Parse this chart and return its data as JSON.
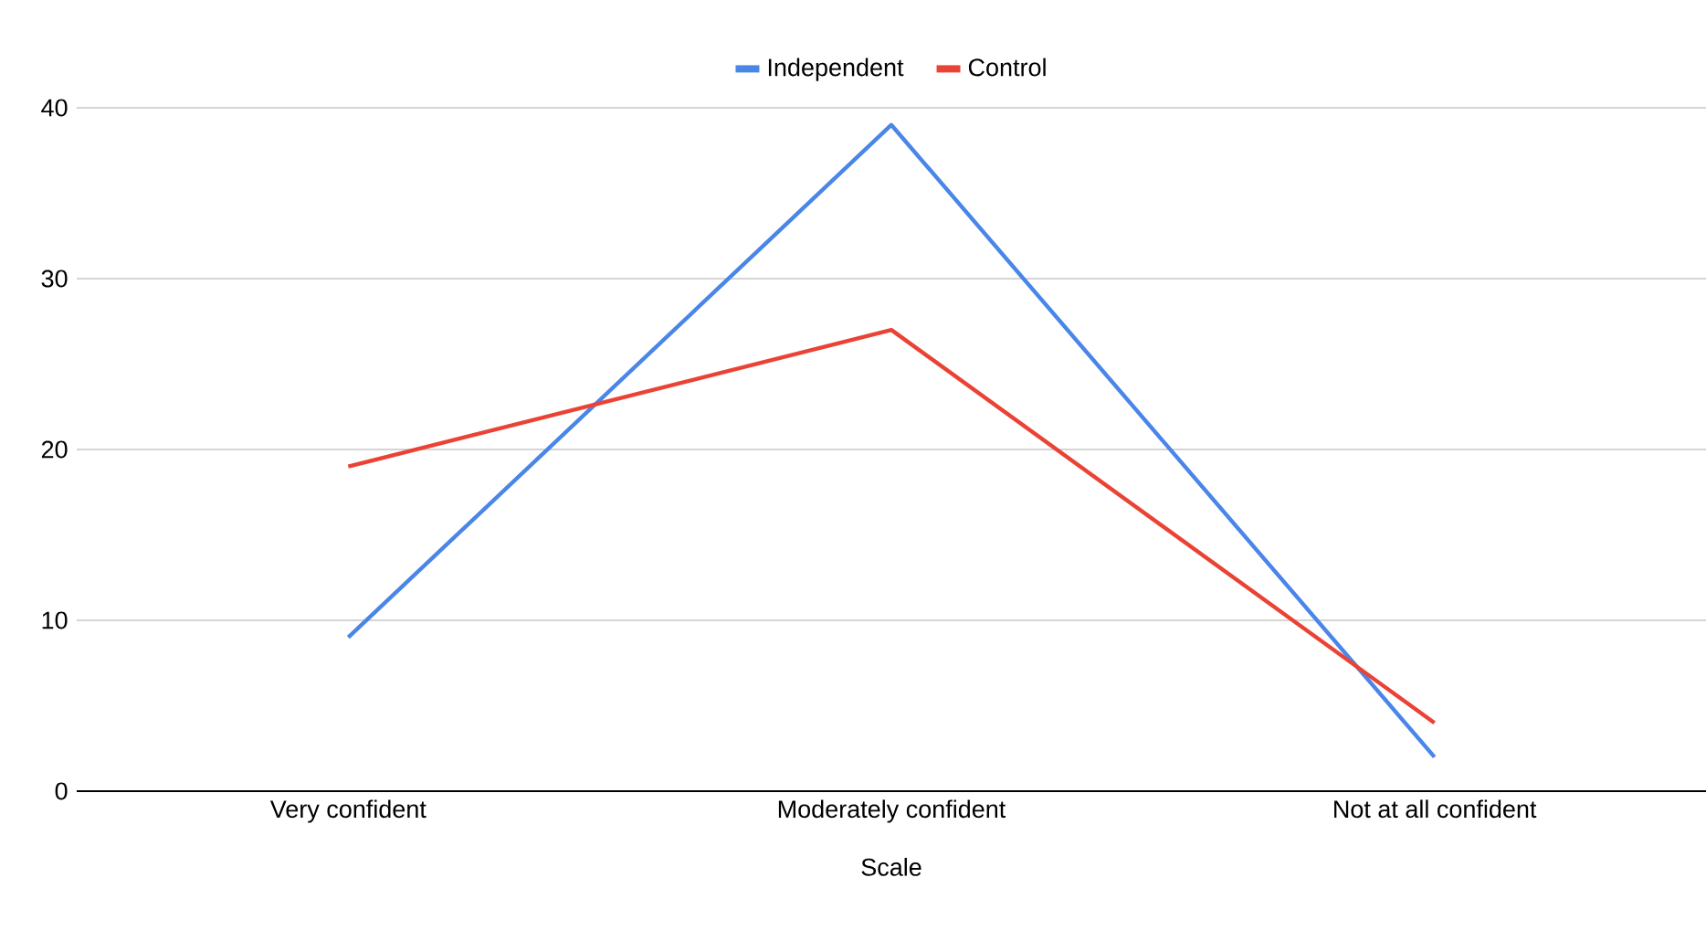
{
  "chart_data": {
    "type": "line",
    "xlabel": "Scale",
    "categories": [
      "Very confident",
      "Moderately confident",
      "Not at all confident"
    ],
    "series": [
      {
        "name": "Independent",
        "color": "#4a86e8",
        "values": [
          9,
          39,
          2
        ]
      },
      {
        "name": "Control",
        "color": "#ea4335",
        "values": [
          19,
          27,
          4
        ]
      }
    ],
    "ylim": [
      0,
      40
    ],
    "yticks": [
      0,
      10,
      20,
      30,
      40
    ],
    "grid": "y",
    "legend": "top",
    "marker": "none",
    "line_style": "solid"
  }
}
